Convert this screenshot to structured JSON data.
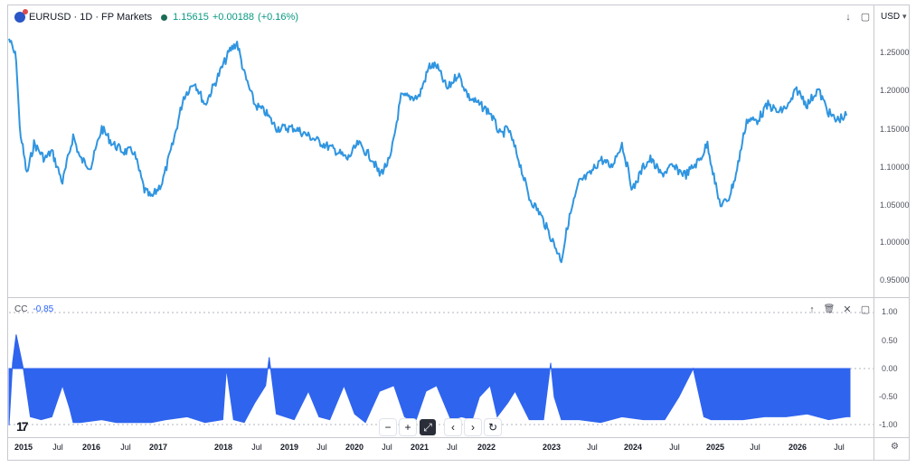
{
  "header": {
    "symbol": "EURUSD · 1D · FP Markets",
    "price": "1.15615",
    "change": "+0.00188",
    "change_pct": "(+0.16%)",
    "currency": "USD",
    "currency_caret": "▾"
  },
  "icons": {
    "main_pane": [
      "↓",
      "▢"
    ],
    "indicator_pane": [
      "↑",
      "🗑",
      "✕",
      "▢"
    ],
    "toolbar": [
      "−",
      "+",
      "⤢",
      "‹",
      "›",
      "↻"
    ],
    "settings": "⚙"
  },
  "indicator": {
    "name": "CC",
    "value": "-0.85"
  },
  "price_axis": [
    "1.25000",
    "1.20000",
    "1.15000",
    "1.10000",
    "1.05000",
    "1.00000",
    "0.95000"
  ],
  "indicator_axis": [
    "1.00",
    "0.50",
    "0.00",
    "-0.50",
    "-1.00"
  ],
  "time_axis": [
    {
      "t": "2015",
      "year": true
    },
    {
      "t": "Jul",
      "year": false
    },
    {
      "t": "2016",
      "year": true
    },
    {
      "t": "Jul",
      "year": false
    },
    {
      "t": "2017",
      "year": true
    },
    {
      "t": "2018",
      "year": true
    },
    {
      "t": "Jul",
      "year": false
    },
    {
      "t": "2019",
      "year": true
    },
    {
      "t": "Jul",
      "year": false
    },
    {
      "t": "2020",
      "year": true
    },
    {
      "t": "Jul",
      "year": false
    },
    {
      "t": "2021",
      "year": true
    },
    {
      "t": "Jul",
      "year": false
    },
    {
      "t": "2022",
      "year": true
    },
    {
      "t": "2023",
      "year": true
    },
    {
      "t": "Jul",
      "year": false
    },
    {
      "t": "2024",
      "year": true
    },
    {
      "t": "Jul",
      "year": false
    },
    {
      "t": "2025",
      "year": true
    },
    {
      "t": "Jul",
      "year": false
    },
    {
      "t": "2026",
      "year": true
    },
    {
      "t": "Jul",
      "year": false
    }
  ],
  "colors": {
    "price_line": "#2f95e0",
    "histogram": "#2f64ee",
    "positive": "#089981"
  },
  "chart_data": [
    {
      "type": "line",
      "series": [
        {
          "x": [
            2015.0,
            2015.1,
            2015.15,
            2015.25,
            2015.35,
            2015.5,
            2015.6,
            2015.75,
            2015.9,
            2016.0,
            2016.15,
            2016.3,
            2016.45,
            2016.6,
            2016.75,
            2016.9,
            2017.0,
            2017.15,
            2017.3,
            2017.45,
            2017.6,
            2017.75,
            2017.9,
            2018.1,
            2018.2,
            2018.3,
            2018.45,
            2018.6,
            2018.75,
            2018.9,
            2019.0,
            2019.2,
            2019.4,
            2019.6,
            2019.75,
            2019.9,
            2020.1,
            2020.2,
            2020.35,
            2020.5,
            2020.6,
            2020.75,
            2020.9,
            2021.0,
            2021.15,
            2021.3,
            2021.45,
            2021.6,
            2021.75,
            2021.9,
            2022.0,
            2022.15,
            2022.3,
            2022.45,
            2022.6,
            2022.75,
            2022.85,
            2023.0,
            2023.15,
            2023.3,
            2023.45,
            2023.6,
            2023.75,
            2023.9,
            2024.0,
            2024.15,
            2024.3,
            2024.5,
            2024.7,
            2024.8,
            2024.95,
            2025.0,
            2025.1,
            2025.2,
            2025.35,
            2025.5,
            2025.65,
            2025.8,
            2025.95,
            2026.05,
            2026.2,
            2026.35,
            2026.5,
            2026.6,
            2026.75
          ],
          "y": [
            1.255,
            1.23,
            1.14,
            1.08,
            1.12,
            1.1,
            1.11,
            1.07,
            1.13,
            1.1,
            1.09,
            1.14,
            1.12,
            1.11,
            1.11,
            1.06,
            1.05,
            1.07,
            1.12,
            1.18,
            1.2,
            1.17,
            1.2,
            1.24,
            1.25,
            1.21,
            1.17,
            1.16,
            1.14,
            1.14,
            1.14,
            1.13,
            1.12,
            1.11,
            1.1,
            1.12,
            1.1,
            1.08,
            1.1,
            1.18,
            1.18,
            1.18,
            1.22,
            1.22,
            1.19,
            1.21,
            1.18,
            1.17,
            1.16,
            1.13,
            1.14,
            1.1,
            1.05,
            1.03,
            1.0,
            0.97,
            1.02,
            1.07,
            1.08,
            1.1,
            1.09,
            1.12,
            1.06,
            1.09,
            1.1,
            1.08,
            1.09,
            1.08,
            1.1,
            1.12,
            1.05,
            1.04,
            1.05,
            1.08,
            1.15,
            1.15,
            1.17,
            1.16,
            1.17,
            1.19,
            1.17,
            1.19,
            1.16,
            1.15,
            1.156
          ],
          "ylim": [
            0.95,
            1.27
          ]
        }
      ]
    },
    {
      "type": "area",
      "series": [
        {
          "name": "CC",
          "x": [
            2015.0,
            2015.05,
            2015.1,
            2015.2,
            2015.3,
            2015.45,
            2015.6,
            2015.75,
            2015.85,
            2015.9,
            2016.0,
            2016.3,
            2016.5,
            2016.8,
            2017.0,
            2017.2,
            2017.5,
            2017.75,
            2018.0,
            2018.05,
            2018.15,
            2018.3,
            2018.45,
            2018.6,
            2018.65,
            2018.75,
            2019.0,
            2019.2,
            2019.35,
            2019.5,
            2019.7,
            2019.85,
            2020.0,
            2020.2,
            2020.4,
            2020.55,
            2020.7,
            2020.85,
            2021.0,
            2021.2,
            2021.35,
            2021.5,
            2021.6,
            2021.75,
            2021.85,
            2022.0,
            2022.1,
            2022.3,
            2022.5,
            2022.6,
            2022.65,
            2022.75,
            2023.0,
            2023.3,
            2023.6,
            2023.9,
            2024.2,
            2024.4,
            2024.6,
            2024.75,
            2024.85,
            2025.0,
            2025.3,
            2025.6,
            2025.9,
            2026.2,
            2026.5,
            2026.75,
            2026.8
          ],
          "y": [
            -1.0,
            0.1,
            0.6,
            0.0,
            -0.85,
            -0.9,
            -0.85,
            -0.3,
            -0.7,
            -0.95,
            -0.95,
            -0.9,
            -0.95,
            -0.95,
            -0.95,
            -0.9,
            -0.85,
            -0.95,
            -0.9,
            0.0,
            -0.9,
            -0.95,
            -0.6,
            -0.3,
            0.2,
            -0.8,
            -0.9,
            -0.4,
            -0.85,
            -0.9,
            -0.3,
            -0.8,
            -0.95,
            -0.4,
            -0.3,
            -0.85,
            -0.95,
            -0.4,
            -0.3,
            -0.9,
            -0.85,
            -0.9,
            -0.5,
            -0.3,
            -0.85,
            -0.6,
            -0.4,
            -0.9,
            -0.9,
            0.1,
            -0.5,
            -0.9,
            -0.9,
            -0.95,
            -0.85,
            -0.9,
            -0.9,
            -0.5,
            0.0,
            -0.85,
            -0.9,
            -0.9,
            -0.9,
            -0.85,
            -0.85,
            -0.8,
            -0.9,
            -0.85,
            -0.85
          ],
          "ylim": [
            -1.05,
            1.05
          ]
        }
      ]
    }
  ]
}
